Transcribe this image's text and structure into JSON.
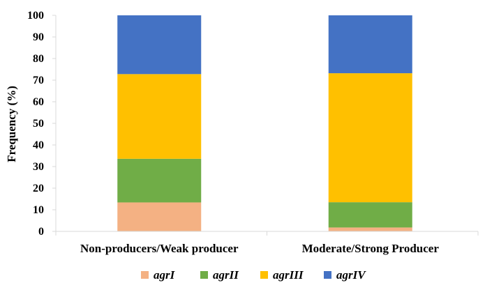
{
  "chart_data": {
    "type": "bar",
    "stacked": true,
    "title": "",
    "xlabel": "",
    "ylabel": "Frequency (%)",
    "ylim": [
      0,
      100
    ],
    "yticks": [
      0,
      10,
      20,
      30,
      40,
      50,
      60,
      70,
      80,
      90,
      100
    ],
    "grid": false,
    "legend_position": "bottom",
    "categories": [
      "Non-producers/Weak producer",
      "Moderate/Strong Producer"
    ],
    "series": [
      {
        "name": "agrI",
        "color": "#F4B183",
        "values": [
          13.4,
          1.8
        ]
      },
      {
        "name": "agrII",
        "color": "#70AD47",
        "values": [
          20.2,
          11.7
        ]
      },
      {
        "name": "agrIII",
        "color": "#FFC000",
        "values": [
          39.2,
          59.7
        ]
      },
      {
        "name": "agrIV",
        "color": "#4472C4",
        "values": [
          27.2,
          26.8
        ]
      }
    ]
  }
}
